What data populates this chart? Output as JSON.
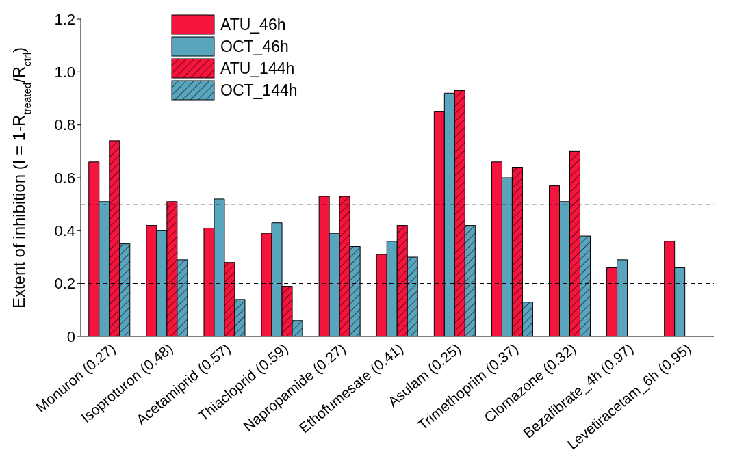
{
  "chart_data": {
    "type": "bar",
    "ylabel": "Extent of inhibition (I = 1-R$_{treated}$/R$_{ctrl}$)",
    "categories": [
      "Monuron (0.27)",
      "Isoproturon (0.48)",
      "Acetamiprid (0.57)",
      "Thiacloprid (0.59)",
      "Napropamide (0.27)",
      "Ethofumesate (0.41)",
      "Asulam (0.25)",
      "Trimethoprim (0.37)",
      "Clomazone (0.32)",
      "Bezafibrate_4h (0.97)",
      "Levetiracetam_6h (0.95)"
    ],
    "series": [
      {
        "name": "ATU_46h",
        "color": "#f5143c",
        "values": [
          0.66,
          0.42,
          0.41,
          0.39,
          0.53,
          0.31,
          0.85,
          0.66,
          0.57,
          0.26,
          0.36
        ]
      },
      {
        "name": "OCT_46h",
        "color": "#5aa5be",
        "values": [
          0.51,
          0.4,
          0.52,
          0.43,
          0.39,
          0.36,
          0.92,
          0.6,
          0.51,
          0.29,
          0.26
        ]
      },
      {
        "name": "ATU_144h",
        "color": "#f5143c",
        "values": [
          0.74,
          0.51,
          0.28,
          0.19,
          0.53,
          0.42,
          0.93,
          0.64,
          0.7,
          null,
          null
        ]
      },
      {
        "name": "OCT_144h",
        "color": "#5aa5be",
        "values": [
          0.35,
          0.29,
          0.14,
          0.06,
          0.34,
          0.3,
          0.42,
          0.13,
          0.38,
          null,
          null
        ]
      }
    ],
    "ylim": [
      0,
      1.2
    ],
    "yticks": [
      0,
      0.2,
      0.4,
      0.6,
      0.8,
      {
        "value": 1,
        "label": "1.0"
      },
      1.2
    ],
    "ref_lines": [
      {
        "axis": "y",
        "value": 0.5,
        "line_style": "dashed",
        "color": "#000000"
      },
      {
        "axis": "y",
        "value": 0.2,
        "line_style": "dashed",
        "color": "#000000"
      }
    ],
    "legend": "top left"
  }
}
